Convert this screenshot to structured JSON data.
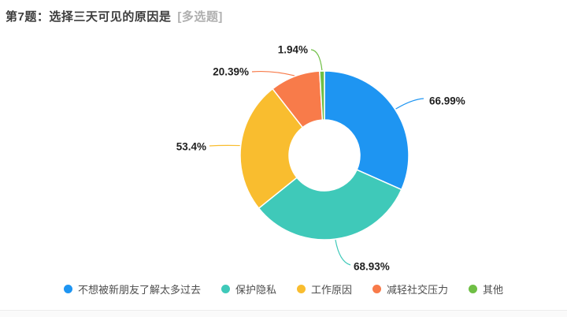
{
  "header": {
    "title": "第7题：选择三天可见的原因是",
    "tag": "[多选题]"
  },
  "chart_data": {
    "type": "pie",
    "subtype": "donut",
    "title": "第7题：选择三天可见的原因是",
    "question_type": "多选题",
    "legend_position": "bottom",
    "start_angle": "top",
    "direction": "clockwise",
    "angle_rule": "slice angle = value / sum(values) * 360 (multi-select percents, sum > 100%)",
    "slices": [
      {
        "name": "不想被新朋友了解太多过去",
        "value": 66.99,
        "label": "66.99%",
        "color": "#1E95F2"
      },
      {
        "name": "保护隐私",
        "value": 68.93,
        "label": "68.93%",
        "color": "#3FC9B9"
      },
      {
        "name": "工作原因",
        "value": 53.4,
        "label": "53.4%",
        "color": "#F9BD2F"
      },
      {
        "name": "减轻社交压力",
        "value": 20.39,
        "label": "20.39%",
        "color": "#F87B4A"
      },
      {
        "name": "其他",
        "value": 1.94,
        "label": "1.94%",
        "color": "#6FBF45"
      }
    ]
  }
}
